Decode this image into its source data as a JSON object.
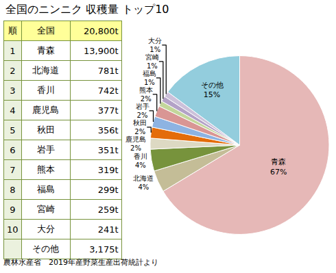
{
  "chart_data": {
    "type": "pie",
    "title": "全国のニンニク 収穫量 トップ10",
    "categories": [
      "青森",
      "北海道",
      "香川",
      "鹿児島",
      "秋田",
      "岩手",
      "熊本",
      "福島",
      "宮崎",
      "大分",
      "その他"
    ],
    "values": [
      67,
      4,
      4,
      2,
      2,
      2,
      2,
      1,
      1,
      1,
      15
    ],
    "value_labels": [
      "67%",
      "4%",
      "4%",
      "2%",
      "2%",
      "2%",
      "2%",
      "1%",
      "1%",
      "1%",
      "15%"
    ],
    "colors": [
      "#e6b8b7",
      "#c4bd97",
      "#77933c",
      "#ddd9c3",
      "#e46c0a",
      "#8db3e2",
      "#d99694",
      "#c3d69b",
      "#b3a2c7",
      "#ccc1da",
      "#93cddd"
    ],
    "data_labels": true
  },
  "table": {
    "header": [
      "順",
      "全国",
      "20,800t"
    ],
    "rows": [
      [
        "1",
        "青森",
        "13,900t"
      ],
      [
        "2",
        "北海道",
        "781t"
      ],
      [
        "3",
        "香川",
        "742t"
      ],
      [
        "4",
        "鹿児島",
        "377t"
      ],
      [
        "5",
        "秋田",
        "356t"
      ],
      [
        "6",
        "岩手",
        "351t"
      ],
      [
        "7",
        "熊本",
        "319t"
      ],
      [
        "8",
        "福島",
        "299t"
      ],
      [
        "9",
        "宮崎",
        "259t"
      ],
      [
        "10",
        "大分",
        "241t"
      ],
      [
        null,
        "その他",
        "3,175t"
      ]
    ]
  },
  "source": "農林水産省　2019年産野菜生産出荷統計より"
}
